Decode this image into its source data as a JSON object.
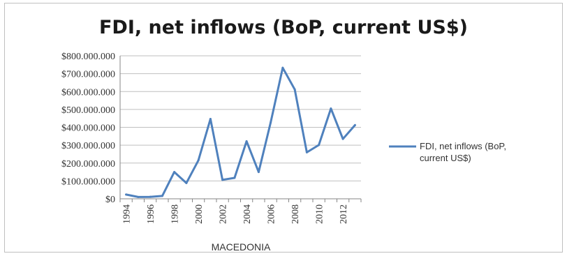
{
  "chart_data": {
    "type": "line",
    "title": "FDI, net inflows (BoP, current US$)",
    "xlabel": "MACEDONIA",
    "ylabel": "",
    "x": [
      1994,
      1995,
      1996,
      1997,
      1998,
      1999,
      2000,
      2001,
      2002,
      2003,
      2004,
      2005,
      2006,
      2007,
      2008,
      2009,
      2010,
      2011,
      2012,
      2013
    ],
    "x_tick_labels": [
      "1994",
      "1996",
      "1998",
      "2000",
      "2002",
      "2004",
      "2006",
      "2008",
      "2010",
      "2012"
    ],
    "series": [
      {
        "name": "FDI, net inflows (BoP, current US$)",
        "color": "#4f81bd",
        "values": [
          24000000,
          10000000,
          11000000,
          16000000,
          150000000,
          88000000,
          215000000,
          447000000,
          106000000,
          117000000,
          322000000,
          150000000,
          427000000,
          733000000,
          612000000,
          260000000,
          301000000,
          505000000,
          335000000,
          412000000
        ]
      }
    ],
    "y_tick_labels": [
      "$0",
      "$100.000.000",
      "$200.000.000",
      "$300.000.000",
      "$400.000.000",
      "$500.000.000",
      "$600.000.000",
      "$700.000.000",
      "$800.000.000"
    ],
    "ylim": [
      0,
      800000000
    ],
    "grid": true,
    "legend": {
      "position": "right",
      "lines": [
        "FDI, net inflows (BoP,",
        "current US$)"
      ]
    }
  }
}
